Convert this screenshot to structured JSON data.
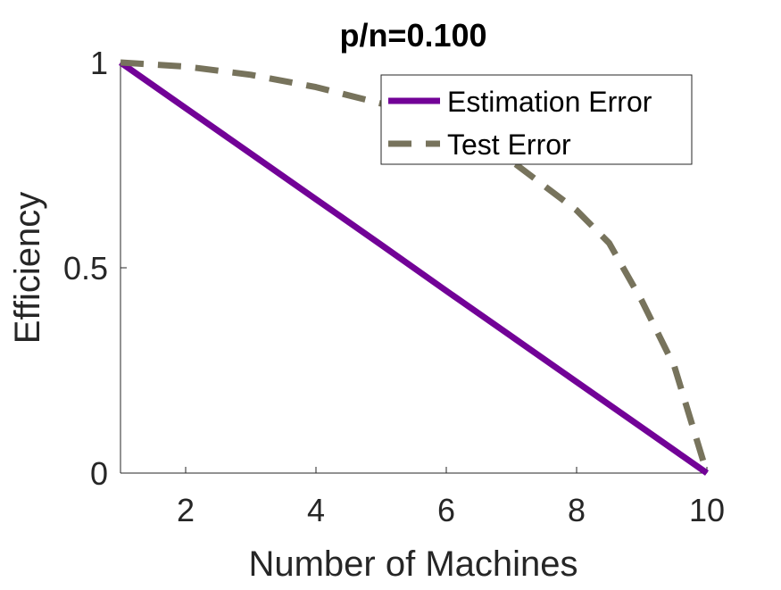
{
  "chart_data": {
    "type": "line",
    "title": "p/n=0.100",
    "xlabel": "Number of Machines",
    "ylabel": "Efficiency",
    "xlim": [
      1,
      10
    ],
    "ylim": [
      0,
      1
    ],
    "xticks": [
      2,
      4,
      6,
      8,
      10
    ],
    "yticks": [
      0,
      0.5,
      1
    ],
    "ytick_labels": [
      "0",
      "0.5",
      "1"
    ],
    "grid": false,
    "legend_position": "top-right",
    "series": [
      {
        "name": "Estimation Error",
        "color": "#720297",
        "style": "solid",
        "x": [
          1,
          2,
          3,
          4,
          5,
          6,
          7,
          8,
          9,
          10
        ],
        "y": [
          1.0,
          0.889,
          0.778,
          0.667,
          0.556,
          0.444,
          0.333,
          0.222,
          0.111,
          0.0
        ]
      },
      {
        "name": "Test Error",
        "color": "#77735c",
        "style": "dashed",
        "x": [
          1,
          2,
          3,
          4,
          5,
          6,
          7,
          8,
          8.5,
          9,
          9.5,
          10
        ],
        "y": [
          1.0,
          0.99,
          0.97,
          0.94,
          0.9,
          0.84,
          0.76,
          0.64,
          0.56,
          0.42,
          0.26,
          0.0
        ]
      }
    ]
  }
}
